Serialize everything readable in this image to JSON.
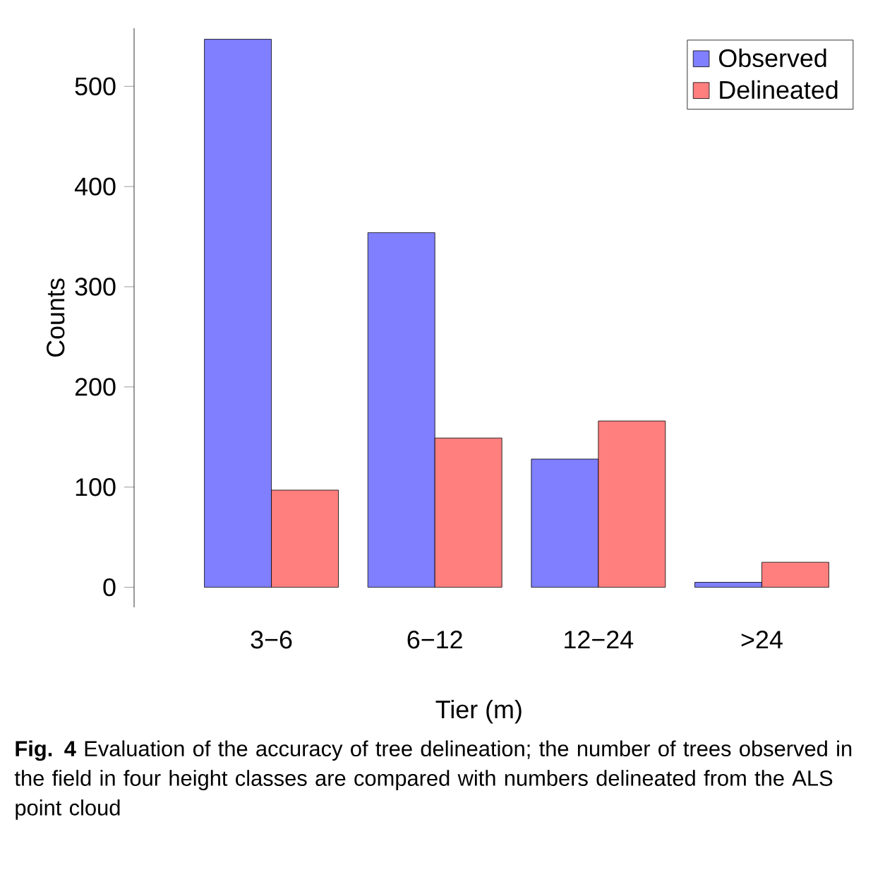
{
  "chart_data": {
    "type": "bar",
    "xlabel": "Tier (m)",
    "ylabel": "Counts",
    "categories": [
      "3−6",
      "6−12",
      "12−24",
      ">24"
    ],
    "series": [
      {
        "name": "Observed",
        "color": "#7f7fff",
        "values": [
          547,
          354,
          128,
          5
        ]
      },
      {
        "name": "Delineated",
        "color": "#ff7f7f",
        "values": [
          97,
          149,
          166,
          25
        ]
      }
    ],
    "ylim": [
      -20,
      558
    ],
    "yticks": [
      0,
      100,
      200,
      300,
      400,
      500
    ],
    "grid": false,
    "legend": "top right",
    "annotations": [
      "**Fig. 4** Evaluation of the accuracy of tree delineation; the number of trees observed in the field in four height classes are compared with numbers delineated from the ALS point cloud"
    ]
  }
}
